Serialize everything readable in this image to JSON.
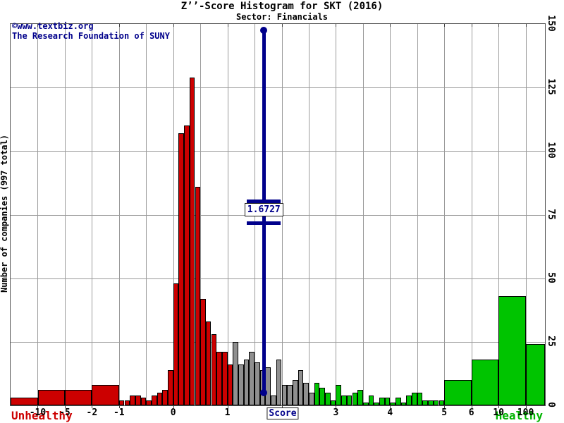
{
  "title": "Z’’-Score Histogram for SKT (2016)",
  "subtitle": "Sector: Financials",
  "watermark": {
    "line1": "©www.textbiz.org",
    "line2": "The Research Foundation of SUNY"
  },
  "labels": {
    "unhealthy": "Unhealthy",
    "healthy": "Healthy"
  },
  "marker": {
    "value": 1.6727,
    "label": "1.6727",
    "color": "#00008b"
  },
  "colors": {
    "distress": "#cc0000",
    "grey_zone": "#8f8f8f",
    "safe": "#00c400",
    "marker": "#00008b",
    "grid": "#9b9b9b",
    "unhealthy_text": "#cc0000",
    "healthy_text": "#00b400"
  },
  "chart_data": {
    "type": "bar",
    "title": "Z’’-Score Histogram for SKT (2016)",
    "subtitle": "Sector: Financials",
    "xlabel": "Score",
    "ylabel": "Number of companies (997 total)",
    "total_companies": 997,
    "ylim": [
      0,
      150
    ],
    "y_ticks": [
      0,
      25,
      50,
      75,
      100,
      125,
      150
    ],
    "x_ticks": {
      "labels": [
        "-10",
        "-5",
        "-2",
        "-1",
        "0",
        "1",
        "2",
        "3",
        "4",
        "5",
        "6",
        "10",
        "100"
      ],
      "values": [
        -10,
        -5,
        -2,
        -1,
        0,
        1,
        2,
        3,
        4,
        5,
        6,
        10,
        100
      ],
      "cells": [
        1,
        2,
        3,
        4,
        6,
        8,
        10,
        12,
        14,
        16,
        17,
        18,
        19
      ],
      "total_cells": 20
    },
    "grid": true,
    "zone_colors": {
      "d": "#cc0000",
      "g": "#8f8f8f",
      "s": "#00c400"
    },
    "marker_line": {
      "value": 1.6727,
      "label": "1.6727"
    },
    "bins": [
      [
        null,
        -10,
        3,
        "d"
      ],
      [
        -10,
        -5,
        6,
        "d"
      ],
      [
        -5,
        -2,
        6,
        "d"
      ],
      [
        -2,
        -1,
        8,
        "d"
      ],
      [
        -1.0,
        -0.9,
        2,
        "d"
      ],
      [
        -0.9,
        -0.8,
        2,
        "d"
      ],
      [
        -0.8,
        -0.7,
        4,
        "d"
      ],
      [
        -0.7,
        -0.6,
        4,
        "d"
      ],
      [
        -0.6,
        -0.5,
        3,
        "d"
      ],
      [
        -0.5,
        -0.4,
        2,
        "d"
      ],
      [
        -0.4,
        -0.3,
        4,
        "d"
      ],
      [
        -0.3,
        -0.2,
        5,
        "d"
      ],
      [
        -0.2,
        -0.1,
        6,
        "d"
      ],
      [
        -0.1,
        0.0,
        14,
        "d"
      ],
      [
        0.0,
        0.1,
        48,
        "d"
      ],
      [
        0.1,
        0.2,
        107,
        "d"
      ],
      [
        0.2,
        0.3,
        110,
        "d"
      ],
      [
        0.3,
        0.4,
        129,
        "d"
      ],
      [
        0.4,
        0.5,
        86,
        "d"
      ],
      [
        0.5,
        0.6,
        42,
        "d"
      ],
      [
        0.6,
        0.7,
        33,
        "d"
      ],
      [
        0.7,
        0.8,
        28,
        "d"
      ],
      [
        0.8,
        0.9,
        21,
        "d"
      ],
      [
        0.9,
        1.0,
        21,
        "d"
      ],
      [
        1.0,
        1.1,
        16,
        "d"
      ],
      [
        1.1,
        1.2,
        25,
        "g"
      ],
      [
        1.2,
        1.3,
        16,
        "g"
      ],
      [
        1.3,
        1.4,
        18,
        "g"
      ],
      [
        1.4,
        1.5,
        21,
        "g"
      ],
      [
        1.5,
        1.6,
        17,
        "g"
      ],
      [
        1.6,
        1.7,
        14,
        "g"
      ],
      [
        1.7,
        1.8,
        15,
        "g"
      ],
      [
        1.8,
        1.9,
        4,
        "g"
      ],
      [
        1.9,
        2.0,
        18,
        "g"
      ],
      [
        2.0,
        2.1,
        8,
        "g"
      ],
      [
        2.1,
        2.2,
        8,
        "g"
      ],
      [
        2.2,
        2.3,
        10,
        "g"
      ],
      [
        2.3,
        2.4,
        14,
        "g"
      ],
      [
        2.4,
        2.5,
        9,
        "g"
      ],
      [
        2.5,
        2.6,
        5,
        "g"
      ],
      [
        2.6,
        2.7,
        9,
        "s"
      ],
      [
        2.7,
        2.8,
        7,
        "s"
      ],
      [
        2.8,
        2.9,
        5,
        "s"
      ],
      [
        2.9,
        3.0,
        2,
        "s"
      ],
      [
        3.0,
        3.1,
        8,
        "s"
      ],
      [
        3.1,
        3.2,
        4,
        "s"
      ],
      [
        3.2,
        3.3,
        4,
        "s"
      ],
      [
        3.3,
        3.4,
        5,
        "s"
      ],
      [
        3.4,
        3.5,
        6,
        "s"
      ],
      [
        3.5,
        3.6,
        1,
        "s"
      ],
      [
        3.6,
        3.7,
        4,
        "s"
      ],
      [
        3.7,
        3.8,
        1,
        "s"
      ],
      [
        3.8,
        3.9,
        3,
        "s"
      ],
      [
        3.9,
        4.0,
        3,
        "s"
      ],
      [
        4.0,
        4.1,
        1,
        "s"
      ],
      [
        4.1,
        4.2,
        3,
        "s"
      ],
      [
        4.2,
        4.3,
        1,
        "s"
      ],
      [
        4.3,
        4.4,
        4,
        "s"
      ],
      [
        4.4,
        4.5,
        5,
        "s"
      ],
      [
        4.5,
        4.6,
        5,
        "s"
      ],
      [
        4.6,
        4.7,
        2,
        "s"
      ],
      [
        4.7,
        4.8,
        2,
        "s"
      ],
      [
        4.8,
        4.9,
        2,
        "s"
      ],
      [
        4.9,
        5.0,
        2,
        "s"
      ],
      [
        5,
        6,
        10,
        "s"
      ],
      [
        6,
        10,
        18,
        "s"
      ],
      [
        10,
        100,
        43,
        "s"
      ],
      [
        100,
        null,
        24,
        "s"
      ]
    ]
  }
}
